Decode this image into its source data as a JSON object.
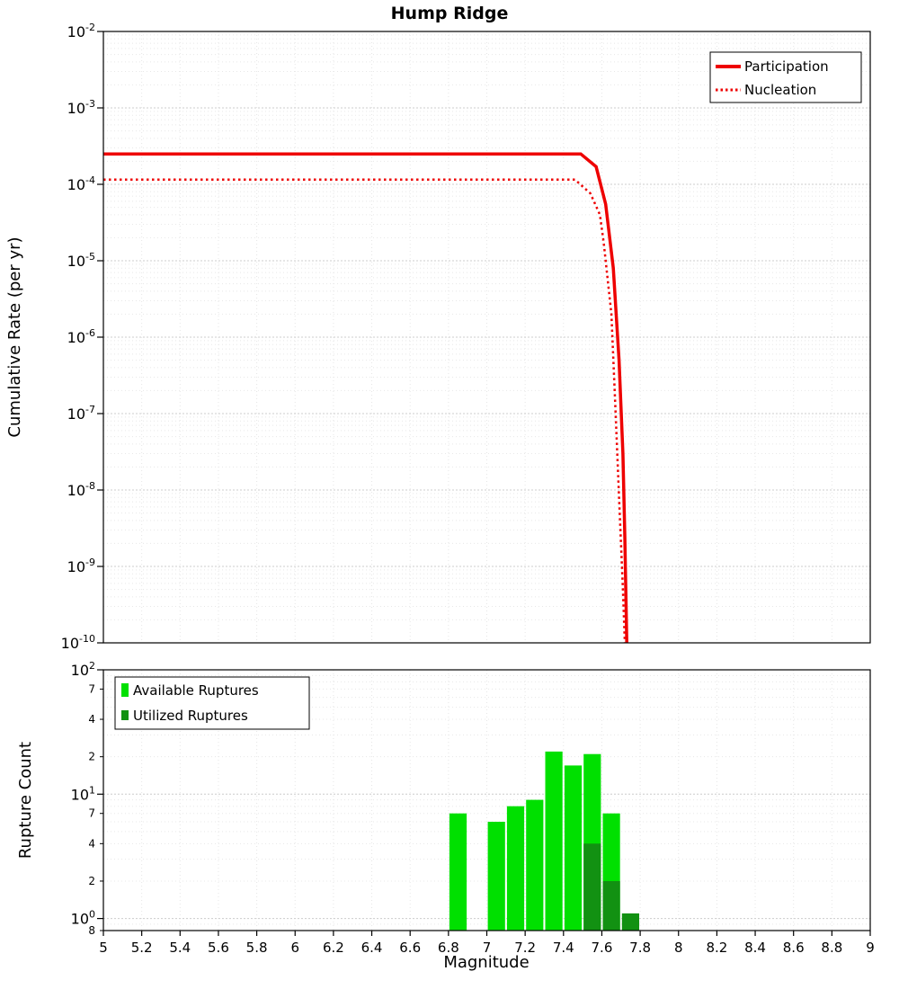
{
  "figure": {
    "title": "Hump Ridge"
  },
  "chart_data": [
    {
      "type": "line",
      "title": "Hump Ridge",
      "xlabel": "Magnitude",
      "ylabel": "Cumulative Rate (per yr)",
      "x_range": [
        5,
        9
      ],
      "x_tick_step": 0.2,
      "y_scale": "log",
      "y_range": [
        1e-10,
        0.01
      ],
      "y_ticks_exponents": [
        -2,
        -3,
        -4,
        -5,
        -6,
        -7,
        -8,
        -9,
        -10
      ],
      "grid": true,
      "legend_position": "top-right",
      "legend": [
        "Participation",
        "Nucleation"
      ],
      "series": [
        {
          "name": "Participation",
          "color": "#ee0000",
          "style": "solid",
          "line_width": 3.5,
          "points": [
            [
              5,
              0.00025
            ],
            [
              7.49,
              0.00025
            ],
            [
              7.57,
              0.00017
            ],
            [
              7.62,
              5.5e-05
            ],
            [
              7.66,
              8e-06
            ],
            [
              7.69,
              5e-07
            ],
            [
              7.71,
              3e-08
            ],
            [
              7.72,
              2.5e-09
            ],
            [
              7.73,
              1e-10
            ]
          ]
        },
        {
          "name": "Nucleation",
          "color": "#ee0000",
          "style": "dotted",
          "line_width": 2.5,
          "points": [
            [
              5,
              0.000115
            ],
            [
              7.46,
              0.000115
            ],
            [
              7.54,
              7.6e-05
            ],
            [
              7.59,
              4e-05
            ],
            [
              7.61,
              1.7e-05
            ],
            [
              7.65,
              2e-06
            ],
            [
              7.67,
              1.3e-07
            ],
            [
              7.69,
              8e-09
            ],
            [
              7.71,
              5e-10
            ],
            [
              7.72,
              1e-10
            ]
          ]
        }
      ]
    },
    {
      "type": "bar",
      "xlabel": "Magnitude",
      "ylabel": "Rupture Count",
      "x_range": [
        5,
        9
      ],
      "x_tick_step": 0.2,
      "y_scale": "log",
      "y_range": [
        0.8,
        100
      ],
      "y_major_ticks": [
        100,
        10,
        1
      ],
      "y_minor_labeled_ticks": [
        70,
        40,
        20,
        7,
        4,
        2
      ],
      "y_bottom_tick": {
        "value": 0.8,
        "label": "8"
      },
      "bar_width_mag": 0.09,
      "grid": true,
      "legend_position": "top-left",
      "legend": [
        "Available Ruptures",
        "Utilized Ruptures"
      ],
      "series": [
        {
          "name": "Available Ruptures",
          "color": "#00e000",
          "bars": [
            {
              "x": 6.85,
              "count": 7
            },
            {
              "x": 7.05,
              "count": 6
            },
            {
              "x": 7.15,
              "count": 8
            },
            {
              "x": 7.25,
              "count": 9
            },
            {
              "x": 7.35,
              "count": 22
            },
            {
              "x": 7.45,
              "count": 17
            },
            {
              "x": 7.55,
              "count": 21
            },
            {
              "x": 7.65,
              "count": 7
            }
          ]
        },
        {
          "name": "Utilized Ruptures",
          "color": "#129112",
          "bars": [
            {
              "x": 7.55,
              "count": 4
            },
            {
              "x": 7.65,
              "count": 2
            },
            {
              "x": 7.75,
              "count": 1.1
            }
          ]
        }
      ]
    }
  ]
}
